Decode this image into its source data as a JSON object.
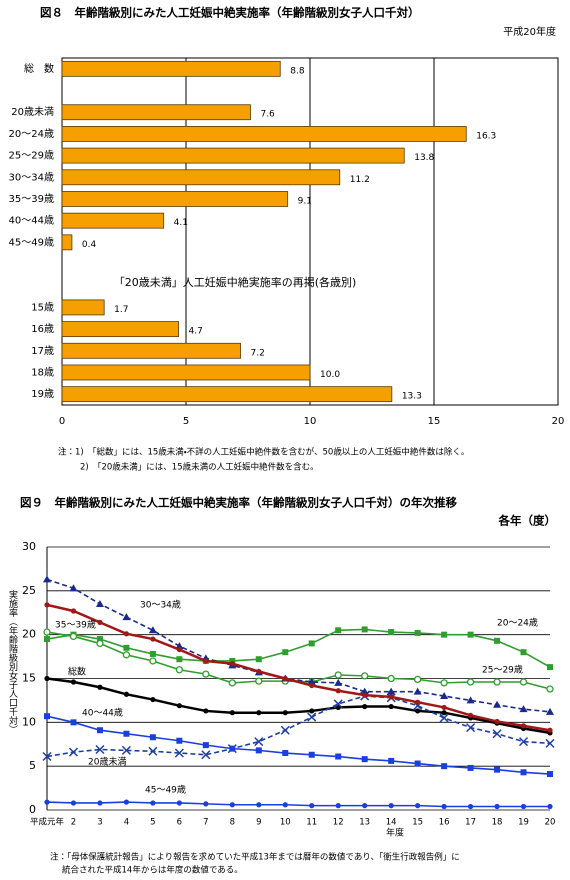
{
  "chart_data": [
    {
      "type": "hbar",
      "title": "図８　年齢階級別にみた人工妊娠中絶実施率（年齢階級別女子人口千対）",
      "subtitle": "平成20年度",
      "categories": [
        "総　数",
        null,
        "20歳未満",
        "20～24歳",
        "25～29歳",
        "30～34歳",
        "35～39歳",
        "40～44歳",
        "45～49歳",
        null,
        null,
        "15歳",
        "16歳",
        "17歳",
        "18歳",
        "19歳"
      ],
      "values": [
        8.8,
        null,
        7.6,
        16.3,
        13.8,
        11.2,
        9.1,
        4.1,
        0.4,
        null,
        null,
        1.7,
        4.7,
        7.2,
        10,
        13.3
      ],
      "value_labels": [
        "8.8",
        null,
        "7.6",
        "16.3",
        "13.8",
        "11.2",
        "9.1",
        "4.1",
        "0.4",
        null,
        null,
        "1.7",
        "4.7",
        "7.2",
        "10.0",
        "13.3"
      ],
      "heading": "「20歳未満」人工妊娠中絶実施率の再掲(各歳別)",
      "color": "#f5a000",
      "xlim": [
        0,
        20
      ],
      "xticks": [
        0,
        5,
        10,
        15,
        20
      ],
      "grid": true,
      "notes": [
        "注：1)　「総数」には、15歳未満・不詳の人工妊娠中絶件数を含むが、50歳以上の人工妊娠中絶件数は除く。",
        "2)　「20歳未満」には、15歳未満の人工妊娠中絶件数を含む。"
      ]
    },
    {
      "type": "line",
      "title": "図９　年齢階級別にみた人工妊娠中絶実施率（年齢階級別女子人口千対）の年次推移",
      "subtitle": "各年（度）",
      "y_label": "実施率（年齢階級別女子人口千対）",
      "x_label": "年度",
      "categories": [
        "平成元年",
        "2",
        "3",
        "4",
        "5",
        "6",
        "7",
        "8",
        "9",
        "10",
        "11",
        "12",
        "13",
        "14",
        "15",
        "16",
        "17",
        "18",
        "19",
        "20"
      ],
      "ylim": [
        0,
        30
      ],
      "yticks": [
        0,
        5,
        10,
        15,
        20,
        25,
        30
      ],
      "grid": true,
      "series": [
        {
          "name": "総数",
          "color": "#000000",
          "marker": "circle",
          "dashed": false,
          "values": [
            15.0,
            14.6,
            14.0,
            13.2,
            12.6,
            11.9,
            11.3,
            11.1,
            11.1,
            11.1,
            11.3,
            11.7,
            11.8,
            11.8,
            11.3,
            11.1,
            10.5,
            9.9,
            9.3,
            8.8
          ]
        },
        {
          "name": "20歳未満",
          "color": "#1f3fa0",
          "marker": "x",
          "dashed": true,
          "values": [
            6.1,
            6.6,
            6.9,
            6.8,
            6.7,
            6.5,
            6.3,
            7.0,
            7.8,
            9.1,
            10.6,
            12.1,
            13.0,
            12.8,
            11.9,
            10.5,
            9.4,
            8.7,
            7.8,
            7.6
          ]
        },
        {
          "name": "20～24歳",
          "color": "#2f9e2f",
          "marker": "square",
          "dashed": false,
          "values": [
            19.5,
            20.0,
            19.5,
            18.5,
            17.8,
            17.2,
            17.0,
            17.0,
            17.2,
            18.0,
            19.0,
            20.5,
            20.6,
            20.3,
            20.2,
            20.0,
            20.0,
            19.3,
            18.0,
            16.3
          ]
        },
        {
          "name": "25～29歳",
          "color": "#2f9e2f",
          "marker": "open-circle",
          "dashed": false,
          "values": [
            20.3,
            19.8,
            19.0,
            17.7,
            17.0,
            16.0,
            15.5,
            14.5,
            14.7,
            14.7,
            14.6,
            15.4,
            15.3,
            15.0,
            14.9,
            14.5,
            14.6,
            14.6,
            14.6,
            13.8
          ]
        },
        {
          "name": "30～34歳",
          "color": "#1a2a8c",
          "marker": "triangle",
          "dashed": true,
          "values": [
            26.3,
            25.3,
            23.5,
            22.0,
            20.5,
            18.7,
            17.3,
            16.5,
            15.7,
            15.0,
            14.6,
            14.5,
            13.5,
            13.5,
            13.5,
            13.0,
            12.5,
            12.0,
            11.5,
            11.2
          ]
        },
        {
          "name": "35～39歳",
          "color": "#a01818",
          "marker": "circle",
          "dashed": false,
          "values": [
            23.4,
            22.7,
            21.4,
            20.1,
            19.5,
            18.3,
            17.0,
            16.7,
            15.8,
            15.0,
            14.2,
            13.6,
            13.1,
            12.9,
            12.3,
            11.7,
            10.8,
            10.1,
            9.6,
            9.1
          ]
        },
        {
          "name": "40～44歳",
          "color": "#1a3fe0",
          "marker": "square",
          "dashed": false,
          "values": [
            10.7,
            10.0,
            9.1,
            8.7,
            8.3,
            7.9,
            7.4,
            7.0,
            6.8,
            6.5,
            6.3,
            6.1,
            5.8,
            5.6,
            5.3,
            5.0,
            4.8,
            4.6,
            4.3,
            4.1
          ]
        },
        {
          "name": "45～49歳",
          "color": "#1a3fe0",
          "marker": "circle",
          "dashed": false,
          "values": [
            0.9,
            0.8,
            0.8,
            0.9,
            0.8,
            0.8,
            0.7,
            0.6,
            0.6,
            0.6,
            0.5,
            0.5,
            0.5,
            0.5,
            0.5,
            0.4,
            0.4,
            0.4,
            0.4,
            0.4
          ]
        }
      ],
      "notes": [
        "注：「母体保護統計報告」により報告を求めていた平成13年までは暦年の数値であり、「衛生行政報告例」に",
        "統合された平成14年からは年度の数値である。"
      ]
    }
  ]
}
